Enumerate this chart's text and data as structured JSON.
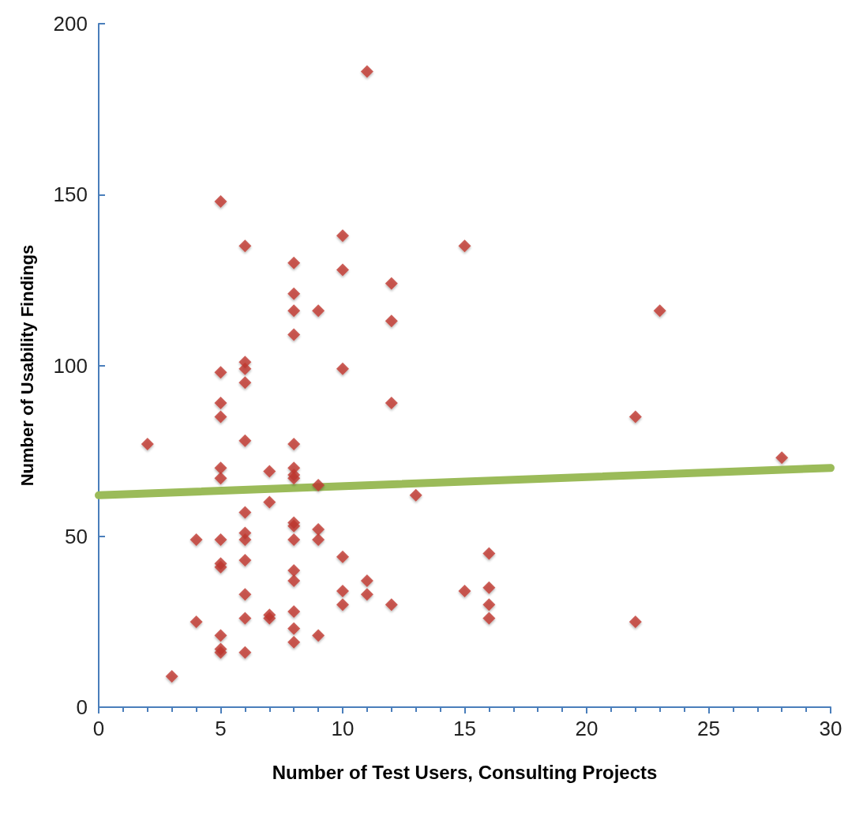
{
  "chart_data": {
    "type": "scatter",
    "xlabel": "Number of Test Users, Consulting Projects",
    "ylabel": "Number of Usability Findings",
    "xlim": [
      0,
      30
    ],
    "xticks": [
      0,
      5,
      10,
      15,
      20,
      25,
      30
    ],
    "ylim": [
      0,
      200
    ],
    "yticks": [
      0,
      50,
      100,
      150,
      200
    ],
    "grid": false,
    "marker": "diamond",
    "series": [
      {
        "color": "#c0392f",
        "x": [
          2,
          3,
          4,
          4,
          5,
          5,
          5,
          5,
          5,
          5,
          5,
          5,
          5,
          5,
          5,
          5,
          6,
          6,
          6,
          6,
          6,
          6,
          6,
          6,
          6,
          6,
          6,
          6,
          7,
          7,
          7,
          7,
          8,
          8,
          8,
          8,
          8,
          8,
          8,
          8,
          8,
          8,
          8,
          8,
          8,
          8,
          8,
          8,
          9,
          9,
          9,
          9,
          9,
          10,
          10,
          10,
          10,
          10,
          10,
          11,
          11,
          11,
          12,
          12,
          12,
          12,
          13,
          15,
          15,
          16,
          16,
          16,
          16,
          22,
          22,
          23,
          28
        ],
        "values": [
          77,
          9,
          49,
          25,
          148,
          98,
          89,
          85,
          70,
          67,
          49,
          42,
          41,
          21,
          17,
          16,
          135,
          101,
          99,
          95,
          78,
          57,
          51,
          49,
          43,
          33,
          26,
          16,
          69,
          60,
          27,
          26,
          130,
          121,
          116,
          109,
          77,
          70,
          68,
          67,
          54,
          53,
          49,
          40,
          37,
          28,
          23,
          19,
          116,
          65,
          52,
          49,
          21,
          138,
          128,
          99,
          44,
          34,
          30,
          186,
          37,
          33,
          124,
          113,
          89,
          30,
          62,
          135,
          34,
          45,
          35,
          30,
          26,
          85,
          25,
          116,
          73
        ]
      },
      {
        "type": "line",
        "color": "#9bbb59",
        "x": [
          0,
          30
        ],
        "values": [
          62,
          70
        ],
        "marker": "none"
      }
    ]
  }
}
